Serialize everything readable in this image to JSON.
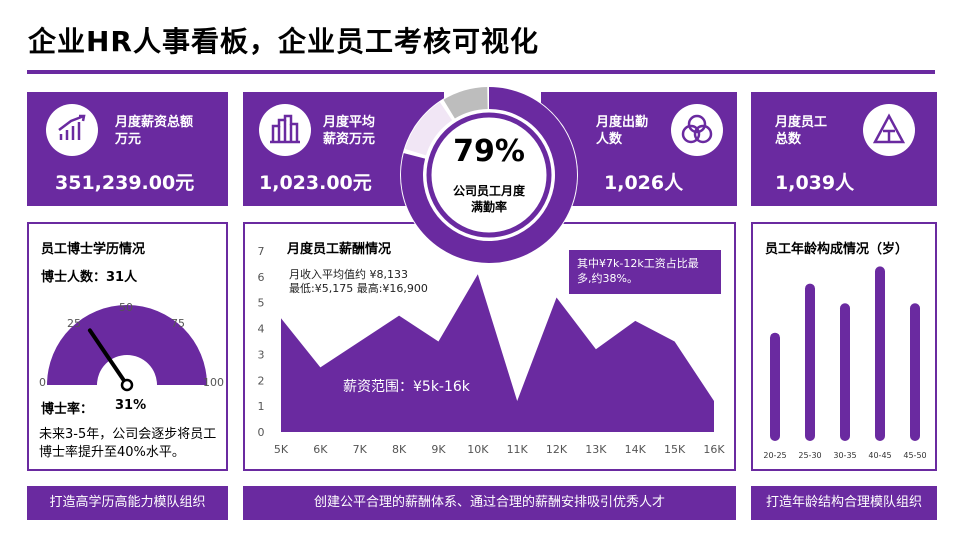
{
  "header": {
    "title": "企业HR人事看板，企业员工考核可视化"
  },
  "kpis": [
    {
      "label_line1": "月度薪资总额",
      "label_line2": "万元",
      "value": "351,239.00元",
      "icon": "bar-growth-icon"
    },
    {
      "label_line1": "月度平均",
      "label_line2": "薪资万元",
      "value": "1,023.00元",
      "icon": "building-chart-icon"
    },
    {
      "label_line1": "月度出勤",
      "label_line2": "人数",
      "value": "1,026人",
      "icon": "venn-circles-icon"
    },
    {
      "label_line1": "月度员工",
      "label_line2": "总数",
      "value": "1,039人",
      "icon": "triangle-layout-icon"
    }
  ],
  "center_donut": {
    "percent_value": 79,
    "percent_label": "79%",
    "label_line1": "公司员工月度",
    "label_line2": "满勤率",
    "colors": {
      "main": "#6a2aa0",
      "light": "#f1e6f5",
      "grey": "#bdbdbd"
    }
  },
  "phd_panel": {
    "title": "员工博士学历情况",
    "count_label": "博士人数：31人",
    "gauge_ticks": [
      "0",
      "25",
      "50",
      "75",
      "100"
    ],
    "gauge_value": 31,
    "rate_label": "博士率：",
    "rate_value": "31%",
    "note": "未来3-5年，公司会逐步将员工博士率提升至40%水平。"
  },
  "salary_panel": {
    "title": "月度员工薪酬情况",
    "stat_line1": "月收入平均值约 ¥8,133",
    "stat_line2": "最低:¥5,175 最高:¥16,900",
    "range_label": "薪资范围：¥5k-16k",
    "callout": "其中¥7k-12k工资占比最多,约38%。"
  },
  "age_panel": {
    "title": "员工年龄构成情况（岁）"
  },
  "footer": {
    "left": "打造高学历高能力模队组织",
    "center": "创建公平合理的薪酬体系、通过合理的薪酬安排吸引优秀人才",
    "right": "打造年龄结构合理模队组织"
  },
  "chart_data": [
    {
      "type": "area",
      "title": "月度员工薪酬情况",
      "x": [
        "5K",
        "6K",
        "7K",
        "8K",
        "9K",
        "10K",
        "11K",
        "12K",
        "13K",
        "14K",
        "15K",
        "16K"
      ],
      "values": [
        4.4,
        2.5,
        3.5,
        4.5,
        3.5,
        6.1,
        1.2,
        5.2,
        3.2,
        4.3,
        3.5,
        1.2
      ],
      "ylim": [
        0,
        7
      ],
      "yticks": [
        "0",
        "1",
        "2",
        "3",
        "4",
        "5",
        "6",
        "7"
      ]
    },
    {
      "type": "bar",
      "title": "员工年龄构成情况（岁）",
      "categories": [
        "20-25",
        "25-30",
        "30-35",
        "40-45",
        "45-50"
      ],
      "values": [
        40,
        60,
        52,
        67,
        52
      ],
      "ylim": [
        0,
        70
      ]
    }
  ]
}
